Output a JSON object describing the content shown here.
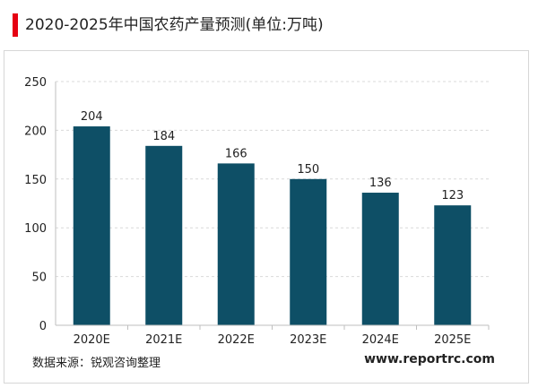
{
  "header": {
    "title": "2020-2025年中国农药产量预测(单位:万吨)",
    "accent_color": "#e60012"
  },
  "footer": {
    "source": "数据来源：锐观咨询整理",
    "website": "www.reportrc.com"
  },
  "chart_data": {
    "type": "bar",
    "title": "",
    "xlabel": "",
    "ylabel": "",
    "categories": [
      "2020E",
      "2021E",
      "2022E",
      "2023E",
      "2024E",
      "2025E"
    ],
    "values": [
      204,
      184,
      166,
      150,
      136,
      123
    ],
    "data_labels": [
      "204",
      "184",
      "166",
      "150",
      "136",
      "123"
    ],
    "ylim": [
      0,
      250
    ],
    "yticks": [
      "0",
      "50",
      "100",
      "150",
      "200",
      "250"
    ],
    "grid": true,
    "bar_color": "#0e4f66"
  }
}
